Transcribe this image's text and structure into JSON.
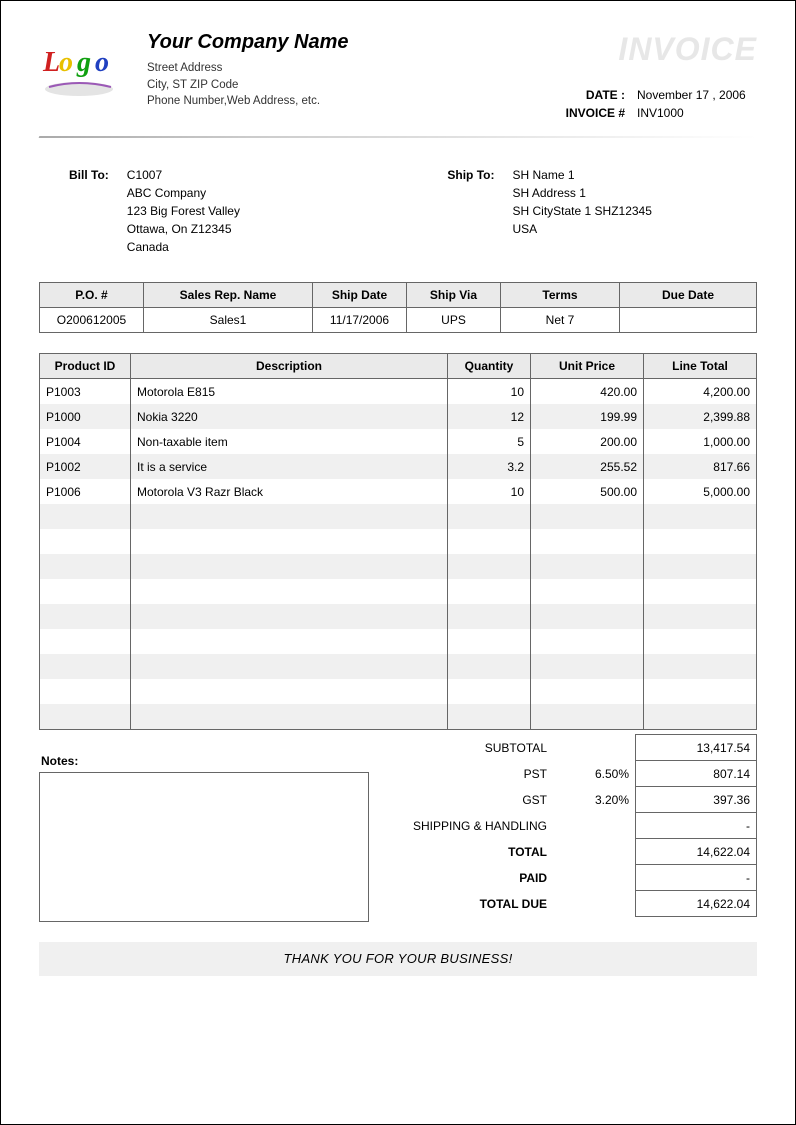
{
  "company": {
    "name": "Your Company Name",
    "street": "Street Address",
    "city_line": "City, ST  ZIP Code",
    "contact_line": "Phone Number,Web Address, etc."
  },
  "invoice_word": "INVOICE",
  "meta": {
    "date_label": "DATE :",
    "date_value": "November 17 , 2006",
    "invnum_label": "INVOICE #",
    "invnum_value": "INV1000"
  },
  "bill_to": {
    "heading": "Bill To:",
    "lines": [
      "C1007",
      "ABC Company",
      "123 Big Forest Valley",
      "Ottawa, On Z12345",
      "Canada"
    ]
  },
  "ship_to": {
    "heading": "Ship To:",
    "lines": [
      "SH Name 1",
      "SH Address 1",
      "SH CityState 1 SHZ12345",
      "USA"
    ]
  },
  "order": {
    "headers": [
      "P.O. #",
      "Sales Rep. Name",
      "Ship Date",
      "Ship Via",
      "Terms",
      "Due Date"
    ],
    "row": [
      "O200612005",
      "Sales1",
      "11/17/2006",
      "UPS",
      "Net 7",
      ""
    ]
  },
  "items": {
    "headers": [
      "Product ID",
      "Description",
      "Quantity",
      "Unit Price",
      "Line Total"
    ],
    "rows": [
      {
        "pid": "P1003",
        "desc": "Motorola E815",
        "qty": "10",
        "price": "420.00",
        "total": "4,200.00"
      },
      {
        "pid": "P1000",
        "desc": "Nokia 3220",
        "qty": "12",
        "price": "199.99",
        "total": "2,399.88"
      },
      {
        "pid": "P1004",
        "desc": "Non-taxable  item",
        "qty": "5",
        "price": "200.00",
        "total": "1,000.00"
      },
      {
        "pid": "P1002",
        "desc": "It is a service",
        "qty": "3.2",
        "price": "255.52",
        "total": "817.66"
      },
      {
        "pid": "P1006",
        "desc": "Motorola V3 Razr Black",
        "qty": "10",
        "price": "500.00",
        "total": "5,000.00"
      }
    ],
    "blank_rows": 9,
    "alt_row_color": "#f0f0f0"
  },
  "notes": {
    "label": "Notes:"
  },
  "totals": {
    "rows": [
      {
        "label": "SUBTOTAL",
        "pct": "",
        "value": "13,417.54",
        "bold": false
      },
      {
        "label": "PST",
        "pct": "6.50%",
        "value": "807.14",
        "bold": false
      },
      {
        "label": "GST",
        "pct": "3.20%",
        "value": "397.36",
        "bold": false
      },
      {
        "label": "SHIPPING & HANDLING",
        "pct": "",
        "value": "-",
        "bold": false
      },
      {
        "label": "TOTAL",
        "pct": "",
        "value": "14,622.04",
        "bold": true
      },
      {
        "label": "PAID",
        "pct": "",
        "value": "-",
        "bold": true
      },
      {
        "label": "TOTAL DUE",
        "pct": "",
        "value": "14,622.04",
        "bold": true
      }
    ]
  },
  "thanks": "THANK YOU FOR YOUR BUSINESS!",
  "colors": {
    "header_bg": "#eaeaea",
    "border": "#666666",
    "invoice_text": "#e7e7e7"
  }
}
